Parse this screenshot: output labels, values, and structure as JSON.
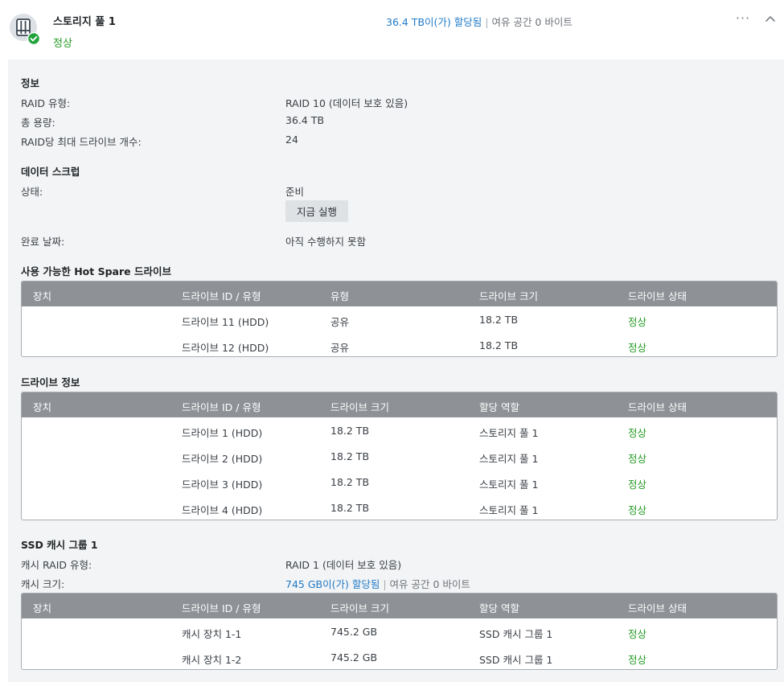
{
  "header": {
    "title": "스토리지 풀 1",
    "status": "정상",
    "allocated": "36.4 TB이(가) 할당됨",
    "separator": "|",
    "free": "여유 공간 0 바이트",
    "more_glyph": "···"
  },
  "info": {
    "title": "정보",
    "raid_type_label": "RAID 유형:",
    "raid_type_value": "RAID 10 (데이터 보호 있음)",
    "capacity_label": "총 용량:",
    "capacity_value": "36.4 TB",
    "max_drives_label": "RAID당 최대 드라이브 개수:",
    "max_drives_value": "24"
  },
  "scrub": {
    "title": "데이터 스크럽",
    "state_label": "상태:",
    "state_value": "준비",
    "run_button": "지금 실행",
    "done_label": "완료 날짜:",
    "done_value": "아직 수행하지 못함"
  },
  "hotspare": {
    "title": "사용 가능한 Hot Spare 드라이브",
    "headers": [
      "장치",
      "드라이브 ID / 유형",
      "유형",
      "드라이브 크기",
      "드라이브 상태"
    ],
    "rows": [
      [
        "",
        "드라이브 11 (HDD)",
        "공유",
        "18.2 TB",
        "정상"
      ],
      [
        "",
        "드라이브 12 (HDD)",
        "공유",
        "18.2 TB",
        "정상"
      ]
    ]
  },
  "drives": {
    "title": "드라이브 정보",
    "headers": [
      "장치",
      "드라이브 ID / 유형",
      "드라이브 크기",
      "할당 역할",
      "드라이브 상태"
    ],
    "rows": [
      [
        "",
        "드라이브 1 (HDD)",
        "18.2 TB",
        "스토리지 풀 1",
        "정상"
      ],
      [
        "",
        "드라이브 2 (HDD)",
        "18.2 TB",
        "스토리지 풀 1",
        "정상"
      ],
      [
        "",
        "드라이브 3 (HDD)",
        "18.2 TB",
        "스토리지 풀 1",
        "정상"
      ],
      [
        "",
        "드라이브 4 (HDD)",
        "18.2 TB",
        "스토리지 풀 1",
        "정상"
      ]
    ]
  },
  "cache": {
    "title": "SSD 캐시 그룹 1",
    "raid_label": "캐시 RAID 유형:",
    "raid_value": "RAID 1 (데이터 보호 있음)",
    "size_label": "캐시 크기:",
    "size_allocated": "745 GB이(가) 할당됨",
    "separator": "|",
    "size_free": "여유 공간 0 바이트",
    "headers": [
      "장치",
      "드라이브 ID / 유형",
      "드라이브 크기",
      "할당 역할",
      "드라이브 상태"
    ],
    "rows": [
      [
        "",
        "캐시 장치 1-1",
        "745.2 GB",
        "SSD 캐시 그룹 1",
        "정상"
      ],
      [
        "",
        "캐시 장치 1-2",
        "745.2 GB",
        "SSD 캐시 그룹 1",
        "정상"
      ]
    ]
  },
  "colors": {
    "ok_green": "#239a23",
    "link_blue": "#1f7ac7",
    "table_header": "#8e9296",
    "panel_bg": "#f3f4f5"
  },
  "icons": {
    "pool": "storage-pool-icon",
    "status_check": "check-badge-icon",
    "more": "more-icon",
    "collapse": "chevron-up-icon"
  }
}
